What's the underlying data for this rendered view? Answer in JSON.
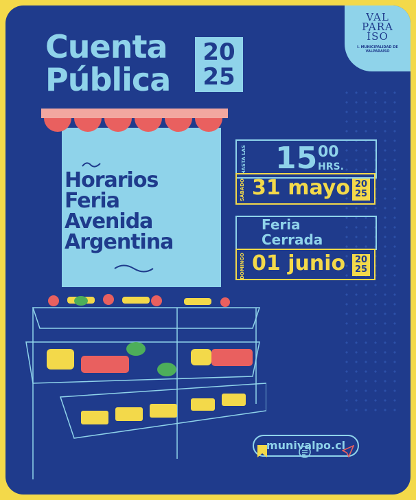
{
  "header": {
    "title_line1": "Cuenta",
    "title_line2": "Pública",
    "year_top": "20",
    "year_bottom": "25"
  },
  "logo": {
    "mark": "VALPARAÍSO",
    "subtitle": "I. MUNICIPALIDAD DE VALPARAÍSO"
  },
  "panel": {
    "lines": [
      "Horarios",
      "Feria",
      "Avenida",
      "Argentina"
    ]
  },
  "event1": {
    "until_label_1": "HASTA",
    "until_label_2": "LAS",
    "hour": "15",
    "minutes": "00",
    "hrs": "HRS.",
    "weekday": "SÁBADO",
    "date": "31 mayo",
    "year_top": "20",
    "year_bottom": "25"
  },
  "event2": {
    "status_1": "Feria",
    "status_2": "Cerrada",
    "weekday": "DOMINGO",
    "date": "01 junio",
    "year_top": "20",
    "year_bottom": "25"
  },
  "footer": {
    "website": "munivalpo.cl",
    "icons": [
      "bookmark-icon",
      "chat-icon",
      "send-icon"
    ]
  },
  "colors": {
    "navy": "#1f3b8c",
    "yellow": "#f3d94a",
    "light_blue": "#8fd3ea",
    "red": "#e9605f"
  }
}
